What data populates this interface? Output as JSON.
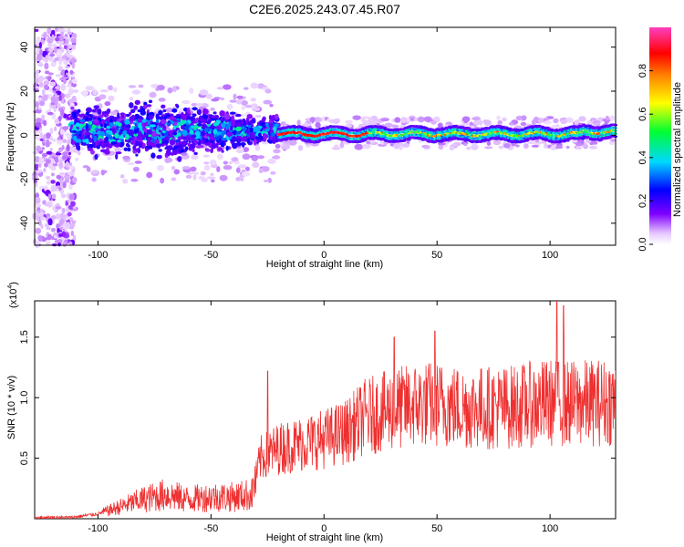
{
  "title": "C2E6.2025.243.07.45.R07",
  "chart_data": [
    {
      "type": "heatmap",
      "name": "spectrogram",
      "xlabel": "Height of straight line (km)",
      "ylabel": "Frequency (Hz)",
      "xlim": [
        -128,
        129
      ],
      "ylim": [
        -50,
        49
      ],
      "xticks": [
        -100,
        -50,
        0,
        50,
        100
      ],
      "yticks": [
        -40,
        -20,
        0,
        20,
        40
      ],
      "colorbar": {
        "label": "Normalized spectral amplitude",
        "range": [
          0,
          1
        ],
        "ticks": [
          0.0,
          0.2,
          0.4,
          0.6,
          0.8
        ],
        "tick_labels": [
          "0.0",
          "0.2",
          "0.4",
          "0.6",
          "0.8"
        ],
        "colormap": "rainbow (white-violet-blue-cyan-green-yellow-red-magenta)"
      },
      "description_features": {
        "scatter_region_x": [
          -128,
          -110
        ],
        "broad_band_x": [
          -112,
          -20
        ],
        "narrow_line_x": [
          -20,
          129
        ],
        "line_center_freq_hz": 0.5
      }
    },
    {
      "type": "line",
      "name": "snr",
      "xlabel": "Height of straight line (km)",
      "ylabel": "SNR (10 * v/v)",
      "y_scale_label": "(x10",
      "y_scale_exponent": "4",
      "xlim": [
        -128,
        129
      ],
      "ylim": [
        0,
        1.8
      ],
      "xticks": [
        -100,
        -50,
        0,
        50,
        100
      ],
      "yticks": [
        0.5,
        1.0,
        1.5
      ],
      "ytick_labels": [
        "0.5",
        "1.0",
        "1.5"
      ],
      "color": "#ee3030",
      "trend": [
        {
          "x": -128,
          "y": 0.01
        },
        {
          "x": -112,
          "y": 0.01
        },
        {
          "x": -100,
          "y": 0.04
        },
        {
          "x": -90,
          "y": 0.1
        },
        {
          "x": -80,
          "y": 0.16
        },
        {
          "x": -70,
          "y": 0.2
        },
        {
          "x": -60,
          "y": 0.16
        },
        {
          "x": -50,
          "y": 0.18
        },
        {
          "x": -40,
          "y": 0.18
        },
        {
          "x": -32,
          "y": 0.2
        },
        {
          "x": -28,
          "y": 0.5
        },
        {
          "x": -20,
          "y": 0.58
        },
        {
          "x": -10,
          "y": 0.62
        },
        {
          "x": 0,
          "y": 0.66
        },
        {
          "x": 10,
          "y": 0.72
        },
        {
          "x": 18,
          "y": 0.84
        },
        {
          "x": 30,
          "y": 0.9
        },
        {
          "x": 40,
          "y": 0.94
        },
        {
          "x": 50,
          "y": 0.95
        },
        {
          "x": 60,
          "y": 0.92
        },
        {
          "x": 70,
          "y": 0.92
        },
        {
          "x": 80,
          "y": 0.92
        },
        {
          "x": 90,
          "y": 0.94
        },
        {
          "x": 100,
          "y": 0.96
        },
        {
          "x": 110,
          "y": 0.95
        },
        {
          "x": 120,
          "y": 0.96
        },
        {
          "x": 129,
          "y": 0.97
        }
      ],
      "spikes": [
        {
          "x": 103,
          "y": 1.8
        },
        {
          "x": 106,
          "y": 1.76
        },
        {
          "x": 31,
          "y": 1.5
        },
        {
          "x": 49,
          "y": 1.55
        },
        {
          "x": -25,
          "y": 1.22
        }
      ]
    }
  ]
}
